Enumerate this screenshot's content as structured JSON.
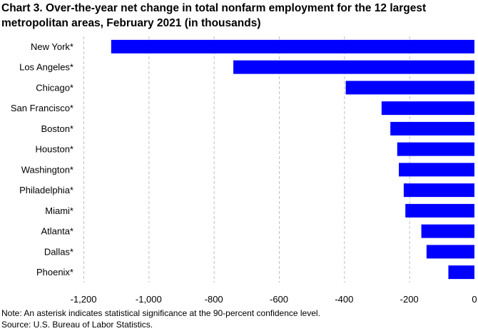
{
  "chart_data": {
    "type": "bar",
    "orientation": "horizontal",
    "title": "Chart 3. Over-the-year net change in total nonfarm employment for the 12 largest metropolitan areas, February 2021 (in thousands)",
    "categories": [
      "New York*",
      "Los Angeles*",
      "Chicago*",
      "San Francisco*",
      "Boston*",
      "Houston*",
      "Washington*",
      "Philadelphia*",
      "Miami*",
      "Atlanta*",
      "Dallas*",
      "Phoenix*"
    ],
    "values": [
      -1115,
      -740,
      -395,
      -285,
      -258,
      -237,
      -232,
      -217,
      -212,
      -163,
      -147,
      -80
    ],
    "xlim": [
      -1200,
      0
    ],
    "xticks": [
      -1200,
      -1000,
      -800,
      -600,
      -400,
      -200,
      0
    ],
    "xtick_labels": [
      "-1,200",
      "-1,000",
      "-800",
      "-600",
      "-400",
      "-200",
      "0"
    ],
    "grid": "vertical dashed",
    "bar_color": "#0000FF",
    "grid_color": "#BFBFBF"
  },
  "notes": {
    "note": "Note: An asterisk indicates statistical significance at the 90-percent confidence level.",
    "source": "Source: U.S. Bureau of Labor Statistics."
  }
}
